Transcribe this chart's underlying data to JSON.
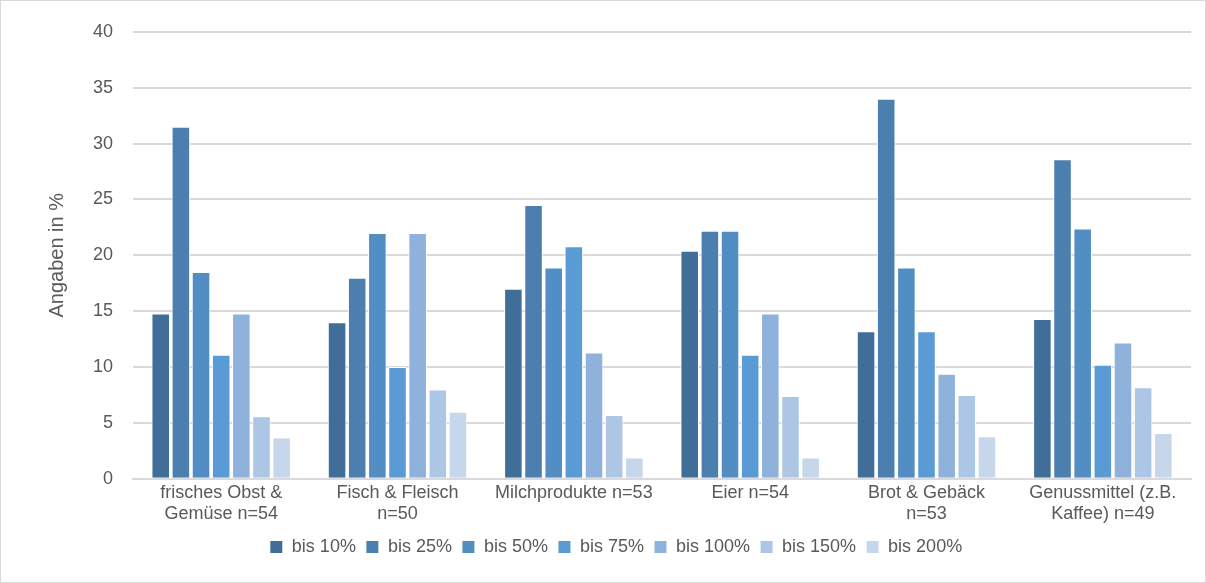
{
  "chart_data": {
    "type": "bar",
    "ylabel": "Angaben in %",
    "categories": [
      "frisches Obst & Gemüse n=54",
      "Fisch & Fleisch n=50",
      "Milchprodukte n=53",
      "Eier n=54",
      "Brot & Gebäck n=53",
      "Genussmittel (z.B. Kaffee) n=49"
    ],
    "series": [
      {
        "name": "bis 10%",
        "color": "#416e98",
        "values": [
          14.8,
          14,
          17,
          20.4,
          13.2,
          14.3
        ]
      },
      {
        "name": "bis 25%",
        "color": "#4a7fb0",
        "values": [
          31.5,
          18,
          24.5,
          22.2,
          34,
          28.6
        ]
      },
      {
        "name": "bis 50%",
        "color": "#528ec3",
        "values": [
          18.5,
          22,
          18.9,
          22.2,
          18.9,
          22.4
        ]
      },
      {
        "name": "bis 75%",
        "color": "#5b9bd5",
        "values": [
          11.1,
          10,
          20.8,
          11.1,
          13.2,
          10.2
        ]
      },
      {
        "name": "bis 100%",
        "color": "#8eb2dc",
        "values": [
          14.8,
          22,
          11.3,
          14.8,
          9.4,
          12.2
        ]
      },
      {
        "name": "bis 150%",
        "color": "#adc6e5",
        "values": [
          5.6,
          8,
          5.7,
          7.4,
          7.5,
          8.2
        ]
      },
      {
        "name": "bis 200%",
        "color": "#c6d7ec",
        "values": [
          3.7,
          6,
          1.9,
          1.9,
          3.8,
          4.1
        ]
      }
    ],
    "ylim": [
      0,
      40
    ],
    "yticks": [
      0,
      5,
      10,
      15,
      20,
      25,
      30,
      35,
      40
    ],
    "grid": "y",
    "legend": "bottom"
  }
}
